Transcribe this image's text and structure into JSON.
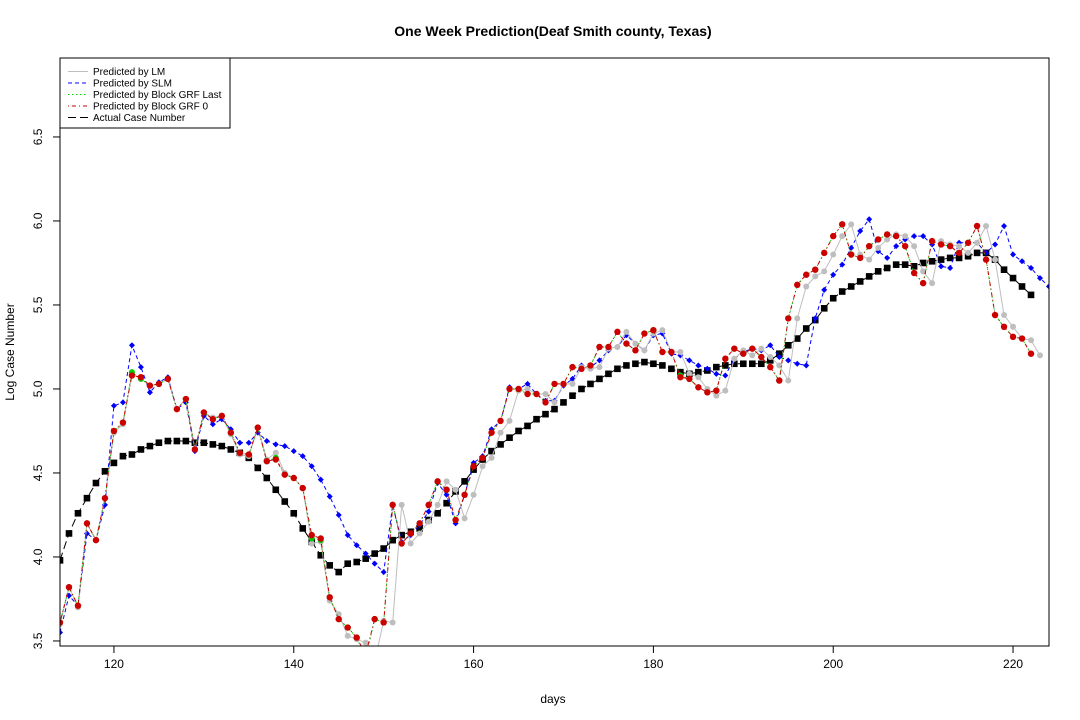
{
  "chart_data": {
    "type": "line",
    "title": "One Week Prediction(Deaf Smith county, Texas)",
    "xlabel": "days",
    "ylabel": "Log Case Number",
    "xlim": [
      114,
      224
    ],
    "ylim": [
      3.47,
      6.97
    ],
    "x_ticks": [
      120,
      140,
      160,
      180,
      200,
      220
    ],
    "y_ticks": [
      3.5,
      4.0,
      4.5,
      5.0,
      5.5,
      6.0,
      6.5
    ],
    "legend_position": "top-left",
    "legend": [
      {
        "label": "Predicted by LM",
        "color": "#bebebe",
        "line": "solid",
        "marker": "circle"
      },
      {
        "label": "Predicted by SLM",
        "color": "#0000ff",
        "line": "dashed",
        "marker": "diamond"
      },
      {
        "label": "Predicted by Block GRF Last",
        "color": "#00cd00",
        "line": "dotted",
        "marker": "circle"
      },
      {
        "label": "Predicted by Block GRF 0",
        "color": "#cd0000",
        "line": "dashdot",
        "marker": "circle"
      },
      {
        "label": "Actual Case Number",
        "color": "#000000",
        "line": "longdash",
        "marker": "square"
      }
    ],
    "x_start": 114,
    "series": [
      {
        "name": "Actual Case Number",
        "key": "actual",
        "color": "#000000",
        "values": [
          3.98,
          4.14,
          4.26,
          4.35,
          4.44,
          4.51,
          4.56,
          4.6,
          4.61,
          4.64,
          4.66,
          4.68,
          4.69,
          4.69,
          4.69,
          4.68,
          4.68,
          4.67,
          4.66,
          4.64,
          4.62,
          4.59,
          4.53,
          4.47,
          4.4,
          4.33,
          4.26,
          4.17,
          4.09,
          4.01,
          3.95,
          3.91,
          3.96,
          3.97,
          3.99,
          4.02,
          4.05,
          4.1,
          4.13,
          4.15,
          4.17,
          4.22,
          4.26,
          4.32,
          4.39,
          4.45,
          4.52,
          4.58,
          4.63,
          4.67,
          4.71,
          4.75,
          4.78,
          4.82,
          4.85,
          4.88,
          4.92,
          4.96,
          5.0,
          5.03,
          5.06,
          5.09,
          5.12,
          5.14,
          5.15,
          5.16,
          5.15,
          5.14,
          5.12,
          5.1,
          5.09,
          5.1,
          5.11,
          5.13,
          5.14,
          5.15,
          5.15,
          5.15,
          5.15,
          5.17,
          5.21,
          5.26,
          5.3,
          5.36,
          5.41,
          5.48,
          5.54,
          5.58,
          5.61,
          5.64,
          5.67,
          5.7,
          5.72,
          5.74,
          5.74,
          5.73,
          5.75,
          5.76,
          5.77,
          5.78,
          5.78,
          5.79,
          5.81,
          5.81,
          5.77,
          5.71,
          5.66,
          5.61,
          5.56
        ]
      },
      {
        "name": "Predicted by SLM",
        "key": "slm",
        "color": "#0000ff",
        "values": [
          3.55,
          3.77,
          3.71,
          4.14,
          4.1,
          4.31,
          4.9,
          4.92,
          5.26,
          5.13,
          4.98,
          5.04,
          5.07,
          4.88,
          4.92,
          4.63,
          4.84,
          4.79,
          4.82,
          4.76,
          4.68,
          4.68,
          4.74,
          4.69,
          4.67,
          4.66,
          4.63,
          4.6,
          4.54,
          4.46,
          4.36,
          4.25,
          4.13,
          4.07,
          4.02,
          3.96,
          3.91,
          4.31,
          4.09,
          4.13,
          4.19,
          4.27,
          4.44,
          4.37,
          4.2,
          4.37,
          4.56,
          4.6,
          4.76,
          4.81,
          5.01,
          5.0,
          5.03,
          4.97,
          4.93,
          4.93,
          5.02,
          5.06,
          5.14,
          5.13,
          5.17,
          5.23,
          5.25,
          5.32,
          5.27,
          5.23,
          5.32,
          5.33,
          5.21,
          5.2,
          5.17,
          5.14,
          5.12,
          5.09,
          5.08,
          5.18,
          5.22,
          5.24,
          5.23,
          5.26,
          5.19,
          5.17,
          5.15,
          5.14,
          5.42,
          5.59,
          5.68,
          5.74,
          5.84,
          5.94,
          6.01,
          5.82,
          5.78,
          5.85,
          5.89,
          5.91,
          5.91,
          5.86,
          5.73,
          5.72,
          5.87,
          5.87,
          5.87,
          5.81,
          5.86,
          5.97,
          5.8,
          5.76,
          5.72,
          5.66,
          5.61,
          5.55
        ]
      },
      {
        "name": "Predicted by LM",
        "key": "lm",
        "color": "#bebebe",
        "values": [
          3.6,
          3.82,
          3.7,
          4.2,
          4.1,
          4.35,
          4.74,
          4.79,
          5.09,
          5.06,
          5.02,
          5.03,
          5.06,
          4.88,
          4.94,
          4.64,
          4.86,
          4.83,
          4.84,
          4.73,
          4.61,
          4.6,
          4.77,
          4.58,
          4.62,
          4.5,
          4.47,
          4.41,
          4.08,
          4.09,
          3.74,
          3.66,
          3.53,
          3.51,
          3.49,
          3.38,
          3.62,
          3.61,
          4.31,
          4.08,
          4.14,
          4.21,
          4.31,
          4.45,
          4.4,
          4.23,
          4.37,
          4.54,
          4.59,
          4.74,
          4.81,
          4.99,
          5.0,
          4.97,
          4.97,
          4.92,
          5.03,
          5.03,
          5.13,
          5.12,
          5.13,
          5.24,
          5.25,
          5.34,
          5.27,
          5.23,
          5.33,
          5.35,
          5.22,
          5.22,
          5.09,
          5.07,
          5.0,
          4.96,
          4.99,
          5.18,
          5.23,
          5.2,
          5.24,
          5.19,
          5.14,
          5.05,
          5.42,
          5.61,
          5.67,
          5.7,
          5.8,
          5.91,
          5.98,
          5.8,
          5.77,
          5.84,
          5.89,
          5.92,
          5.91,
          5.85,
          5.7,
          5.63,
          5.88,
          5.86,
          5.85,
          5.81,
          5.87,
          5.97,
          5.77,
          5.44,
          5.37,
          5.3,
          5.29,
          5.2
        ]
      },
      {
        "name": "Predicted by Block GRF Last",
        "key": "grf_last",
        "color": "#00cd00",
        "values": [
          3.61,
          3.82,
          3.71,
          4.2,
          4.1,
          4.35,
          4.75,
          4.8,
          5.1,
          5.06,
          5.02,
          5.03,
          5.06,
          4.88,
          4.94,
          4.64,
          4.86,
          4.82,
          4.84,
          4.74,
          4.62,
          4.61,
          4.77,
          4.57,
          4.59,
          4.49,
          4.47,
          4.41,
          4.11,
          4.1,
          3.76,
          3.63,
          3.58,
          3.52,
          3.4,
          3.63,
          3.61,
          4.31,
          4.08,
          4.14,
          4.2,
          4.31,
          4.45,
          4.4,
          4.22,
          4.37,
          4.54,
          4.59,
          4.74,
          4.81,
          5.0,
          5.0,
          4.97,
          4.97,
          4.92,
          5.03,
          5.03,
          5.13,
          5.12,
          5.14,
          5.25,
          5.25,
          5.34,
          5.27,
          5.23,
          5.33,
          5.35,
          5.22,
          5.22,
          5.08,
          5.06,
          5.01,
          4.98,
          4.99,
          5.18,
          5.24,
          5.21,
          5.24,
          5.19,
          5.13,
          5.05,
          5.42,
          5.62,
          5.68,
          5.71,
          5.81,
          5.91,
          5.98,
          5.8,
          5.78,
          5.85,
          5.89,
          5.92,
          5.91,
          5.85,
          5.69,
          5.63,
          5.88,
          5.86,
          5.85,
          5.81,
          5.87,
          5.97,
          5.77,
          5.44,
          5.37,
          5.31,
          5.3,
          5.21
        ]
      },
      {
        "name": "Predicted by Block GRF 0",
        "key": "grf_0",
        "color": "#cd0000",
        "values": [
          3.61,
          3.82,
          3.71,
          4.2,
          4.1,
          4.35,
          4.75,
          4.8,
          5.08,
          5.07,
          5.02,
          5.03,
          5.06,
          4.88,
          4.94,
          4.64,
          4.86,
          4.82,
          4.84,
          4.74,
          4.62,
          4.61,
          4.77,
          4.57,
          4.58,
          4.49,
          4.47,
          4.41,
          4.13,
          4.11,
          3.76,
          3.63,
          3.58,
          3.52,
          3.42,
          3.63,
          3.61,
          4.31,
          4.08,
          4.14,
          4.2,
          4.31,
          4.45,
          4.4,
          4.22,
          4.37,
          4.54,
          4.59,
          4.74,
          4.81,
          5.0,
          5.0,
          4.97,
          4.97,
          4.92,
          5.03,
          5.03,
          5.13,
          5.12,
          5.14,
          5.25,
          5.25,
          5.34,
          5.27,
          5.23,
          5.33,
          5.35,
          5.22,
          5.22,
          5.07,
          5.06,
          5.01,
          4.98,
          4.99,
          5.18,
          5.24,
          5.21,
          5.24,
          5.19,
          5.13,
          5.05,
          5.42,
          5.62,
          5.68,
          5.71,
          5.81,
          5.91,
          5.98,
          5.8,
          5.78,
          5.85,
          5.89,
          5.92,
          5.91,
          5.85,
          5.69,
          5.63,
          5.88,
          5.86,
          5.85,
          5.81,
          5.87,
          5.97,
          5.77,
          5.44,
          5.37,
          5.31,
          5.3,
          5.21
        ]
      }
    ]
  }
}
